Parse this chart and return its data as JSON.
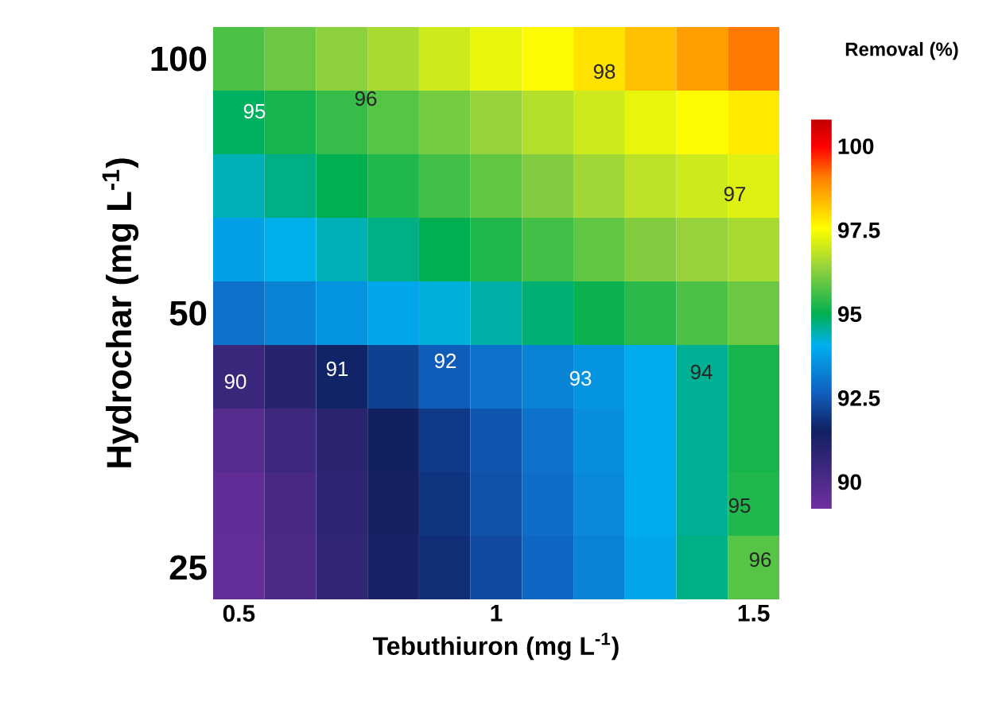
{
  "chart_data": {
    "type": "heatmap",
    "xlabel": "Tebuthiuron (mg L$^{-1}$)",
    "ylabel": "Hydrochar (mg L$^{-1}$)",
    "clabel": "Removal (%)",
    "clim": [
      89.2,
      100.8
    ],
    "cticks": [
      90,
      92.5,
      95,
      97.5,
      100
    ],
    "categories": [
      "0.5",
      null,
      null,
      null,
      null,
      "1",
      null,
      null,
      null,
      null,
      "1.5"
    ],
    "y_categories": [
      "100",
      null,
      null,
      null,
      "50",
      null,
      null,
      null,
      "25"
    ],
    "cells": [
      [
        95.7,
        96.0,
        96.3,
        96.6,
        97.0,
        97.3,
        97.6,
        97.9,
        98.3,
        98.7,
        99.1
      ],
      [
        94.9,
        95.2,
        95.5,
        95.8,
        96.1,
        96.4,
        96.7,
        97.0,
        97.3,
        97.6,
        97.8
      ],
      [
        94.4,
        94.7,
        95.0,
        95.3,
        95.6,
        95.9,
        96.2,
        96.5,
        96.8,
        97.0,
        97.2
      ],
      [
        93.8,
        94.1,
        94.4,
        94.7,
        95.0,
        95.3,
        95.6,
        95.9,
        96.2,
        96.4,
        96.6
      ],
      [
        93.0,
        93.3,
        93.6,
        93.9,
        94.2,
        94.5,
        94.8,
        95.1,
        95.4,
        95.7,
        96.0
      ],
      [
        90.5,
        91.0,
        91.6,
        92.1,
        92.6,
        93.0,
        93.3,
        93.6,
        94.0,
        94.6,
        95.2
      ],
      [
        89.8,
        90.4,
        90.9,
        91.5,
        92.0,
        92.5,
        93.0,
        93.5,
        94.0,
        94.6,
        95.2
      ],
      [
        89.6,
        90.2,
        90.8,
        91.4,
        91.9,
        92.4,
        92.9,
        93.4,
        94.0,
        94.6,
        95.3
      ],
      [
        89.5,
        90.1,
        90.7,
        91.3,
        91.8,
        92.3,
        92.8,
        93.3,
        93.9,
        94.7,
        95.8
      ]
    ],
    "annotations": [
      "95",
      "96",
      "98",
      "97",
      "90",
      "91",
      "92",
      "93",
      "94",
      "95",
      "96"
    ]
  }
}
